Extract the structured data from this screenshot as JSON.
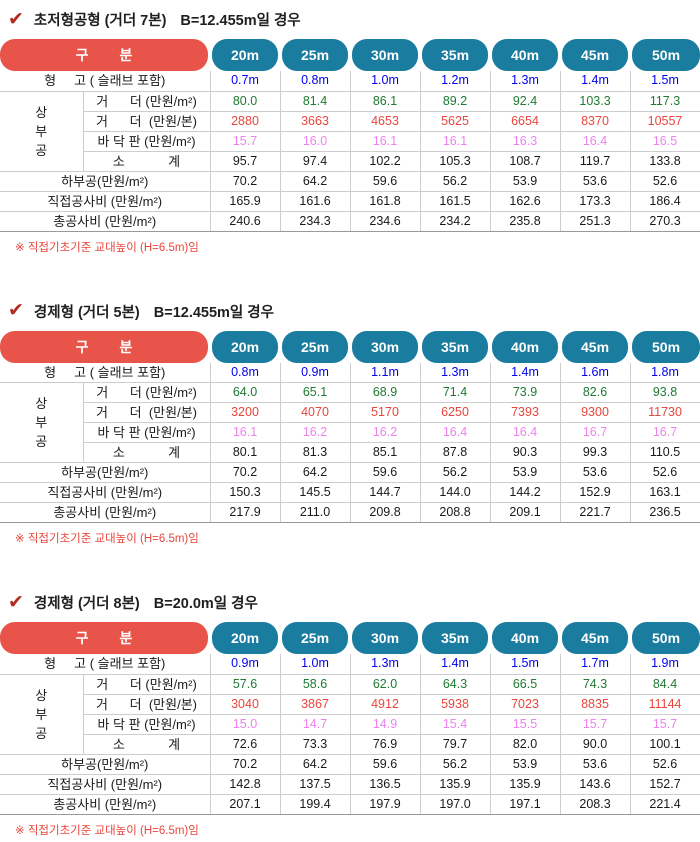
{
  "colors": {
    "pill_red": "#E8544A",
    "pill_teal": "#1A7C9E",
    "value_blue": "#0000EE",
    "value_green": "#1F7A33",
    "value_red": "#E8463C",
    "value_violet": "#EE82EE",
    "value_black": "#1A1A1A",
    "footnote_red": "#E8463C",
    "check_red": "#B22B20"
  },
  "document": {
    "tables": [
      {
        "title": "초저형공형 (거더 7본)",
        "condition": "B=12.455m일 경우",
        "header_label": "구        분",
        "columns": [
          "20m",
          "25m",
          "30m",
          "35m",
          "40m",
          "45m",
          "50m"
        ],
        "group_label": "상부공",
        "rows": [
          {
            "label": "형     고 ( 슬래브 포함)",
            "type": "full",
            "color": "blue",
            "values": [
              "0.7m",
              "0.8m",
              "1.0m",
              "1.2m",
              "1.3m",
              "1.4m",
              "1.5m"
            ]
          },
          {
            "label": "거      더 (만원/m²)",
            "type": "sub",
            "group_start": true,
            "color": "green",
            "values": [
              "80.0",
              "81.4",
              "86.1",
              "89.2",
              "92.4",
              "103.3",
              "117.3"
            ]
          },
          {
            "label": "거      더  (만원/본)",
            "type": "sub",
            "color": "red",
            "values": [
              "2880",
              "3663",
              "4653",
              "5625",
              "6654",
              "8370",
              "10557"
            ]
          },
          {
            "label": "바 닥 판 (만원/m²)",
            "type": "sub",
            "color": "violet",
            "values": [
              "15.7",
              "16.0",
              "16.1",
              "16.1",
              "16.3",
              "16.4",
              "16.5"
            ]
          },
          {
            "label": "소            계",
            "type": "sub",
            "color": "black",
            "values": [
              "95.7",
              "97.4",
              "102.2",
              "105.3",
              "108.7",
              "119.7",
              "133.8"
            ]
          },
          {
            "label": "하부공(만원/m²)",
            "type": "full",
            "color": "black",
            "values": [
              "70.2",
              "64.2",
              "59.6",
              "56.2",
              "53.9",
              "53.6",
              "52.6"
            ]
          },
          {
            "label": "직접공사비 (만원/m²)",
            "type": "full",
            "color": "black",
            "values": [
              "165.9",
              "161.6",
              "161.8",
              "161.5",
              "162.6",
              "173.3",
              "186.4"
            ]
          },
          {
            "label": "총공사비 (만원/m²)",
            "type": "full",
            "color": "black",
            "values": [
              "240.6",
              "234.3",
              "234.6",
              "234.2",
              "235.8",
              "251.3",
              "270.3"
            ]
          }
        ],
        "footnote": "※ 직접기초기준 교대높이 (H=6.5m)임"
      },
      {
        "title": "경제형 (거더 5본)",
        "condition": "B=12.455m일 경우",
        "header_label": "구        분",
        "columns": [
          "20m",
          "25m",
          "30m",
          "35m",
          "40m",
          "45m",
          "50m"
        ],
        "group_label": "상부공",
        "rows": [
          {
            "label": "형     고 ( 슬래브 포함)",
            "type": "full",
            "color": "blue",
            "values": [
              "0.8m",
              "0.9m",
              "1.1m",
              "1.3m",
              "1.4m",
              "1.6m",
              "1.8m"
            ]
          },
          {
            "label": "거      더 (만원/m²)",
            "type": "sub",
            "group_start": true,
            "color": "green",
            "values": [
              "64.0",
              "65.1",
              "68.9",
              "71.4",
              "73.9",
              "82.6",
              "93.8"
            ]
          },
          {
            "label": "거      더  (만원/본)",
            "type": "sub",
            "color": "red",
            "values": [
              "3200",
              "4070",
              "5170",
              "6250",
              "7393",
              "9300",
              "11730"
            ]
          },
          {
            "label": "바 닥 판 (만원/m²)",
            "type": "sub",
            "color": "violet",
            "values": [
              "16.1",
              "16.2",
              "16.2",
              "16.4",
              "16.4",
              "16.7",
              "16.7"
            ]
          },
          {
            "label": "소            계",
            "type": "sub",
            "color": "black",
            "values": [
              "80.1",
              "81.3",
              "85.1",
              "87.8",
              "90.3",
              "99.3",
              "110.5"
            ]
          },
          {
            "label": "하부공(만원/m²)",
            "type": "full",
            "color": "black",
            "values": [
              "70.2",
              "64.2",
              "59.6",
              "56.2",
              "53.9",
              "53.6",
              "52.6"
            ]
          },
          {
            "label": "직접공사비 (만원/m²)",
            "type": "full",
            "color": "black",
            "values": [
              "150.3",
              "145.5",
              "144.7",
              "144.0",
              "144.2",
              "152.9",
              "163.1"
            ]
          },
          {
            "label": "총공사비 (만원/m²)",
            "type": "full",
            "color": "black",
            "values": [
              "217.9",
              "211.0",
              "209.8",
              "208.8",
              "209.1",
              "221.7",
              "236.5"
            ]
          }
        ],
        "footnote": "※ 직접기초기준 교대높이 (H=6.5m)임"
      },
      {
        "title": "경제형 (거더 8본)",
        "condition": "B=20.0m일 경우",
        "header_label": "구        분",
        "columns": [
          "20m",
          "25m",
          "30m",
          "35m",
          "40m",
          "45m",
          "50m"
        ],
        "group_label": "상부공",
        "rows": [
          {
            "label": "형     고 ( 슬래브 포함)",
            "type": "full",
            "color": "blue",
            "values": [
              "0.9m",
              "1.0m",
              "1.3m",
              "1.4m",
              "1.5m",
              "1.7m",
              "1.9m"
            ]
          },
          {
            "label": "거      더 (만원/m²)",
            "type": "sub",
            "group_start": true,
            "color": "green",
            "values": [
              "57.6",
              "58.6",
              "62.0",
              "64.3",
              "66.5",
              "74.3",
              "84.4"
            ]
          },
          {
            "label": "거      더  (만원/본)",
            "type": "sub",
            "color": "red",
            "values": [
              "3040",
              "3867",
              "4912",
              "5938",
              "7023",
              "8835",
              "11144"
            ]
          },
          {
            "label": "바 닥 판 (만원/m²)",
            "type": "sub",
            "color": "violet",
            "values": [
              "15.0",
              "14.7",
              "14.9",
              "15.4",
              "15.5",
              "15.7",
              "15.7"
            ]
          },
          {
            "label": "소            계",
            "type": "sub",
            "color": "black",
            "values": [
              "72.6",
              "73.3",
              "76.9",
              "79.7",
              "82.0",
              "90.0",
              "100.1"
            ]
          },
          {
            "label": "하부공(만원/m²)",
            "type": "full",
            "color": "black",
            "values": [
              "70.2",
              "64.2",
              "59.6",
              "56.2",
              "53.9",
              "53.6",
              "52.6"
            ]
          },
          {
            "label": "직접공사비 (만원/m²)",
            "type": "full",
            "color": "black",
            "values": [
              "142.8",
              "137.5",
              "136.5",
              "135.9",
              "135.9",
              "143.6",
              "152.7"
            ]
          },
          {
            "label": "총공사비 (만원/m²)",
            "type": "full",
            "color": "black",
            "values": [
              "207.1",
              "199.4",
              "197.9",
              "197.0",
              "197.1",
              "208.3",
              "221.4"
            ]
          }
        ],
        "footnote": "※ 직접기초기준 교대높이 (H=6.5m)임"
      }
    ]
  }
}
